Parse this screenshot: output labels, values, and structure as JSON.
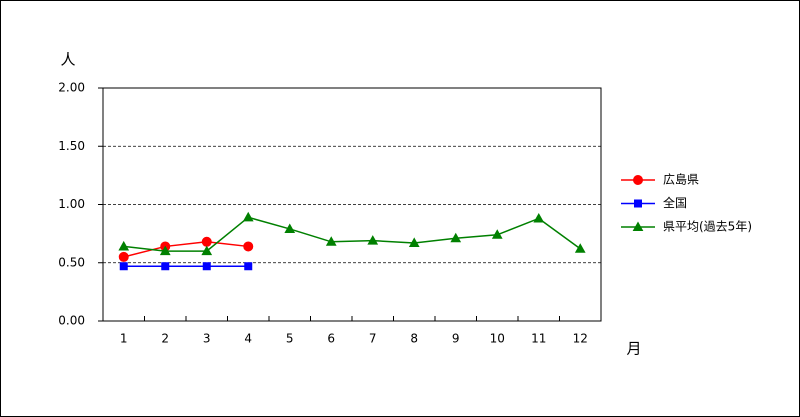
{
  "chart_data": {
    "type": "line",
    "y_label": "人",
    "x_label": "月",
    "categories": [
      "1",
      "2",
      "3",
      "4",
      "5",
      "6",
      "7",
      "8",
      "9",
      "10",
      "11",
      "12"
    ],
    "ylim": [
      0,
      2
    ],
    "yticks": [
      {
        "value": 0,
        "label": "0.00"
      },
      {
        "value": 0.5,
        "label": "0.50"
      },
      {
        "value": 1,
        "label": "1.00"
      },
      {
        "value": 1.5,
        "label": "1.50"
      },
      {
        "value": 2,
        "label": "2.00"
      }
    ],
    "grid": true,
    "legend": "right",
    "series": [
      {
        "name": "広島県",
        "color": "#ff0000",
        "marker": "circle",
        "values": [
          0.55,
          0.64,
          0.68,
          0.64,
          null,
          null,
          null,
          null,
          null,
          null,
          null,
          null
        ]
      },
      {
        "name": "全国",
        "color": "#0000ff",
        "marker": "square",
        "values": [
          0.47,
          0.47,
          0.47,
          0.47,
          null,
          null,
          null,
          null,
          null,
          null,
          null,
          null
        ]
      },
      {
        "name": "県平均(過去5年)",
        "color": "#008000",
        "marker": "triangle",
        "values": [
          0.64,
          0.6,
          0.6,
          0.89,
          0.79,
          0.68,
          0.69,
          0.67,
          0.71,
          0.74,
          0.88,
          0.62
        ]
      }
    ]
  }
}
